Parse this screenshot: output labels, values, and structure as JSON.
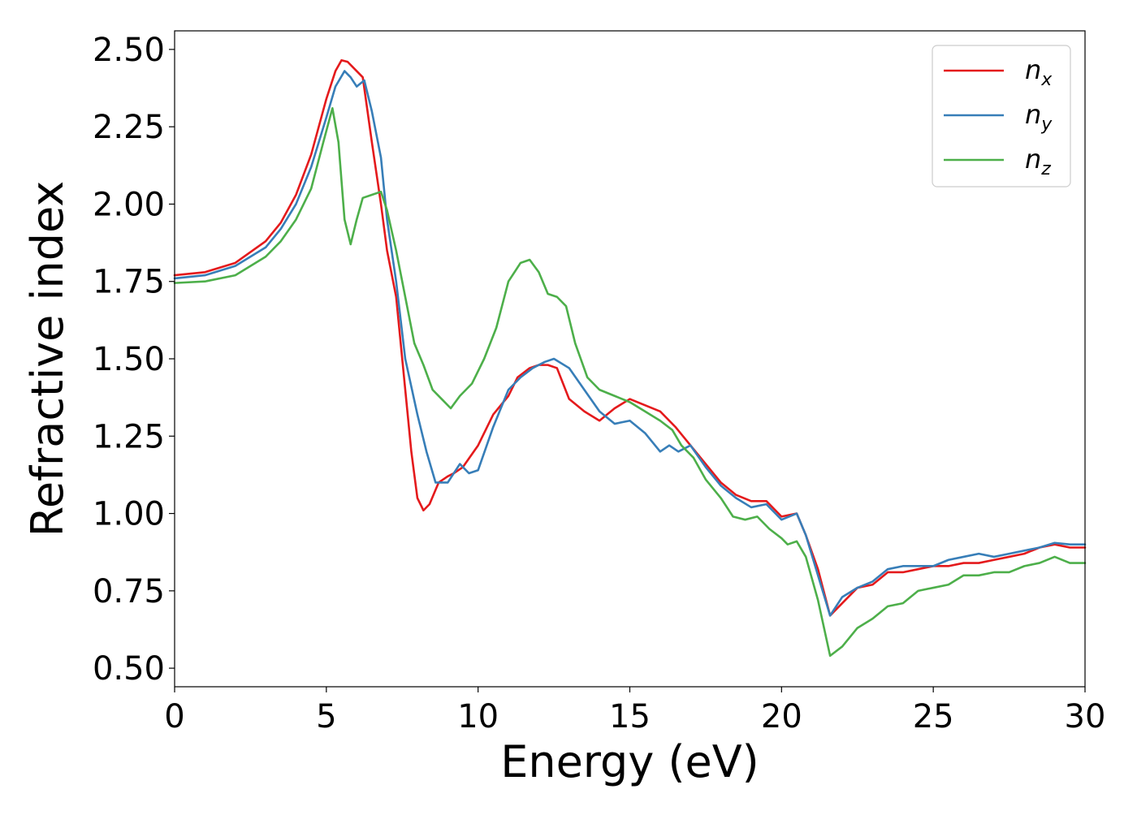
{
  "chart_data": {
    "type": "line",
    "xlabel": "Energy (eV)",
    "ylabel": "Refractive index",
    "xlim": [
      0,
      30
    ],
    "ylim": [
      0.44,
      2.56
    ],
    "xticks": [
      {
        "value": 0,
        "label": "0"
      },
      {
        "value": 5,
        "label": "5"
      },
      {
        "value": 10,
        "label": "10"
      },
      {
        "value": 15,
        "label": "15"
      },
      {
        "value": 20,
        "label": "20"
      },
      {
        "value": 25,
        "label": "25"
      },
      {
        "value": 30,
        "label": "30"
      }
    ],
    "yticks": [
      {
        "value": 0.5,
        "label": "0.50"
      },
      {
        "value": 0.75,
        "label": "0.75"
      },
      {
        "value": 1.0,
        "label": "1.00"
      },
      {
        "value": 1.25,
        "label": "1.25"
      },
      {
        "value": 1.5,
        "label": "1.50"
      },
      {
        "value": 1.75,
        "label": "1.75"
      },
      {
        "value": 2.0,
        "label": "2.00"
      },
      {
        "value": 2.25,
        "label": "2.25"
      },
      {
        "value": 2.5,
        "label": "2.50"
      }
    ],
    "grid": false,
    "legend_position": "top-right",
    "series": [
      {
        "name": "n",
        "subscript": "x",
        "color": "#e41a1c",
        "points": [
          [
            0,
            1.77
          ],
          [
            1,
            1.78
          ],
          [
            2,
            1.81
          ],
          [
            3,
            1.88
          ],
          [
            3.5,
            1.94
          ],
          [
            4,
            2.03
          ],
          [
            4.5,
            2.16
          ],
          [
            5,
            2.34
          ],
          [
            5.3,
            2.43
          ],
          [
            5.5,
            2.465
          ],
          [
            5.7,
            2.46
          ],
          [
            6,
            2.43
          ],
          [
            6.2,
            2.41
          ],
          [
            6.5,
            2.2
          ],
          [
            6.8,
            2.0
          ],
          [
            7,
            1.85
          ],
          [
            7.3,
            1.7
          ],
          [
            7.6,
            1.4
          ],
          [
            7.8,
            1.2
          ],
          [
            8,
            1.05
          ],
          [
            8.2,
            1.01
          ],
          [
            8.4,
            1.03
          ],
          [
            8.7,
            1.1
          ],
          [
            9,
            1.12
          ],
          [
            9.2,
            1.13
          ],
          [
            9.5,
            1.15
          ],
          [
            10,
            1.22
          ],
          [
            10.5,
            1.32
          ],
          [
            11,
            1.38
          ],
          [
            11.3,
            1.44
          ],
          [
            11.7,
            1.47
          ],
          [
            12,
            1.48
          ],
          [
            12.3,
            1.48
          ],
          [
            12.6,
            1.47
          ],
          [
            12.8,
            1.42
          ],
          [
            13,
            1.37
          ],
          [
            13.5,
            1.33
          ],
          [
            14,
            1.3
          ],
          [
            14.5,
            1.34
          ],
          [
            15,
            1.37
          ],
          [
            15.5,
            1.35
          ],
          [
            16,
            1.33
          ],
          [
            16.5,
            1.28
          ],
          [
            17,
            1.22
          ],
          [
            17.5,
            1.16
          ],
          [
            18,
            1.1
          ],
          [
            18.5,
            1.06
          ],
          [
            19,
            1.04
          ],
          [
            19.5,
            1.04
          ],
          [
            20,
            0.99
          ],
          [
            20.5,
            1.0
          ],
          [
            20.8,
            0.93
          ],
          [
            21.2,
            0.82
          ],
          [
            21.6,
            0.67
          ],
          [
            22,
            0.71
          ],
          [
            22.5,
            0.76
          ],
          [
            23,
            0.77
          ],
          [
            23.5,
            0.81
          ],
          [
            24,
            0.81
          ],
          [
            24.5,
            0.82
          ],
          [
            25,
            0.83
          ],
          [
            25.5,
            0.83
          ],
          [
            26,
            0.84
          ],
          [
            26.5,
            0.84
          ],
          [
            27,
            0.85
          ],
          [
            27.5,
            0.86
          ],
          [
            28,
            0.87
          ],
          [
            28.5,
            0.89
          ],
          [
            29,
            0.9
          ],
          [
            29.5,
            0.89
          ],
          [
            30,
            0.89
          ]
        ]
      },
      {
        "name": "n",
        "subscript": "y",
        "color": "#377eb8",
        "points": [
          [
            0,
            1.76
          ],
          [
            1,
            1.77
          ],
          [
            2,
            1.8
          ],
          [
            3,
            1.86
          ],
          [
            3.5,
            1.92
          ],
          [
            4,
            2.0
          ],
          [
            4.5,
            2.12
          ],
          [
            5,
            2.28
          ],
          [
            5.3,
            2.38
          ],
          [
            5.6,
            2.43
          ],
          [
            5.8,
            2.41
          ],
          [
            6,
            2.38
          ],
          [
            6.25,
            2.4
          ],
          [
            6.5,
            2.3
          ],
          [
            6.8,
            2.15
          ],
          [
            7,
            1.95
          ],
          [
            7.3,
            1.75
          ],
          [
            7.6,
            1.5
          ],
          [
            8,
            1.32
          ],
          [
            8.3,
            1.2
          ],
          [
            8.6,
            1.1
          ],
          [
            9,
            1.1
          ],
          [
            9.4,
            1.16
          ],
          [
            9.7,
            1.13
          ],
          [
            10,
            1.14
          ],
          [
            10.5,
            1.28
          ],
          [
            11,
            1.4
          ],
          [
            11.4,
            1.44
          ],
          [
            11.8,
            1.47
          ],
          [
            12.2,
            1.49
          ],
          [
            12.5,
            1.5
          ],
          [
            13,
            1.47
          ],
          [
            13.5,
            1.4
          ],
          [
            14,
            1.33
          ],
          [
            14.5,
            1.29
          ],
          [
            15,
            1.3
          ],
          [
            15.5,
            1.26
          ],
          [
            16,
            1.2
          ],
          [
            16.3,
            1.22
          ],
          [
            16.6,
            1.2
          ],
          [
            17,
            1.22
          ],
          [
            17.5,
            1.15
          ],
          [
            18,
            1.09
          ],
          [
            18.5,
            1.05
          ],
          [
            19,
            1.02
          ],
          [
            19.5,
            1.03
          ],
          [
            20,
            0.98
          ],
          [
            20.5,
            1.0
          ],
          [
            20.8,
            0.93
          ],
          [
            21.2,
            0.8
          ],
          [
            21.6,
            0.67
          ],
          [
            22,
            0.73
          ],
          [
            22.5,
            0.76
          ],
          [
            23,
            0.78
          ],
          [
            23.5,
            0.82
          ],
          [
            24,
            0.83
          ],
          [
            24.5,
            0.83
          ],
          [
            25,
            0.83
          ],
          [
            25.5,
            0.85
          ],
          [
            26,
            0.86
          ],
          [
            26.5,
            0.87
          ],
          [
            27,
            0.86
          ],
          [
            27.5,
            0.87
          ],
          [
            28,
            0.88
          ],
          [
            28.5,
            0.89
          ],
          [
            29,
            0.905
          ],
          [
            29.5,
            0.9
          ],
          [
            30,
            0.9
          ]
        ]
      },
      {
        "name": "n",
        "subscript": "z",
        "color": "#4daf4a",
        "points": [
          [
            0,
            1.745
          ],
          [
            1,
            1.75
          ],
          [
            2,
            1.77
          ],
          [
            3,
            1.83
          ],
          [
            3.5,
            1.88
          ],
          [
            4,
            1.95
          ],
          [
            4.5,
            2.05
          ],
          [
            4.9,
            2.2
          ],
          [
            5.2,
            2.31
          ],
          [
            5.4,
            2.2
          ],
          [
            5.6,
            1.95
          ],
          [
            5.8,
            1.87
          ],
          [
            6,
            1.95
          ],
          [
            6.2,
            2.02
          ],
          [
            6.5,
            2.03
          ],
          [
            6.8,
            2.04
          ],
          [
            7,
            1.98
          ],
          [
            7.3,
            1.85
          ],
          [
            7.6,
            1.7
          ],
          [
            7.9,
            1.55
          ],
          [
            8.2,
            1.48
          ],
          [
            8.5,
            1.4
          ],
          [
            8.8,
            1.37
          ],
          [
            9.1,
            1.34
          ],
          [
            9.4,
            1.38
          ],
          [
            9.8,
            1.42
          ],
          [
            10.2,
            1.5
          ],
          [
            10.6,
            1.6
          ],
          [
            11,
            1.75
          ],
          [
            11.4,
            1.81
          ],
          [
            11.7,
            1.82
          ],
          [
            12,
            1.78
          ],
          [
            12.3,
            1.71
          ],
          [
            12.6,
            1.7
          ],
          [
            12.9,
            1.67
          ],
          [
            13.2,
            1.55
          ],
          [
            13.6,
            1.44
          ],
          [
            14,
            1.4
          ],
          [
            14.5,
            1.38
          ],
          [
            15,
            1.36
          ],
          [
            15.5,
            1.33
          ],
          [
            16,
            1.3
          ],
          [
            16.4,
            1.27
          ],
          [
            16.7,
            1.22
          ],
          [
            17.1,
            1.18
          ],
          [
            17.5,
            1.11
          ],
          [
            18,
            1.05
          ],
          [
            18.4,
            0.99
          ],
          [
            18.8,
            0.98
          ],
          [
            19.2,
            0.99
          ],
          [
            19.6,
            0.95
          ],
          [
            20,
            0.92
          ],
          [
            20.2,
            0.9
          ],
          [
            20.5,
            0.91
          ],
          [
            20.8,
            0.86
          ],
          [
            21.2,
            0.72
          ],
          [
            21.6,
            0.54
          ],
          [
            22,
            0.57
          ],
          [
            22.5,
            0.63
          ],
          [
            23,
            0.66
          ],
          [
            23.5,
            0.7
          ],
          [
            24,
            0.71
          ],
          [
            24.5,
            0.75
          ],
          [
            25,
            0.76
          ],
          [
            25.5,
            0.77
          ],
          [
            26,
            0.8
          ],
          [
            26.5,
            0.8
          ],
          [
            27,
            0.81
          ],
          [
            27.5,
            0.81
          ],
          [
            28,
            0.83
          ],
          [
            28.5,
            0.84
          ],
          [
            29,
            0.86
          ],
          [
            29.5,
            0.84
          ],
          [
            30,
            0.84
          ]
        ]
      }
    ]
  }
}
